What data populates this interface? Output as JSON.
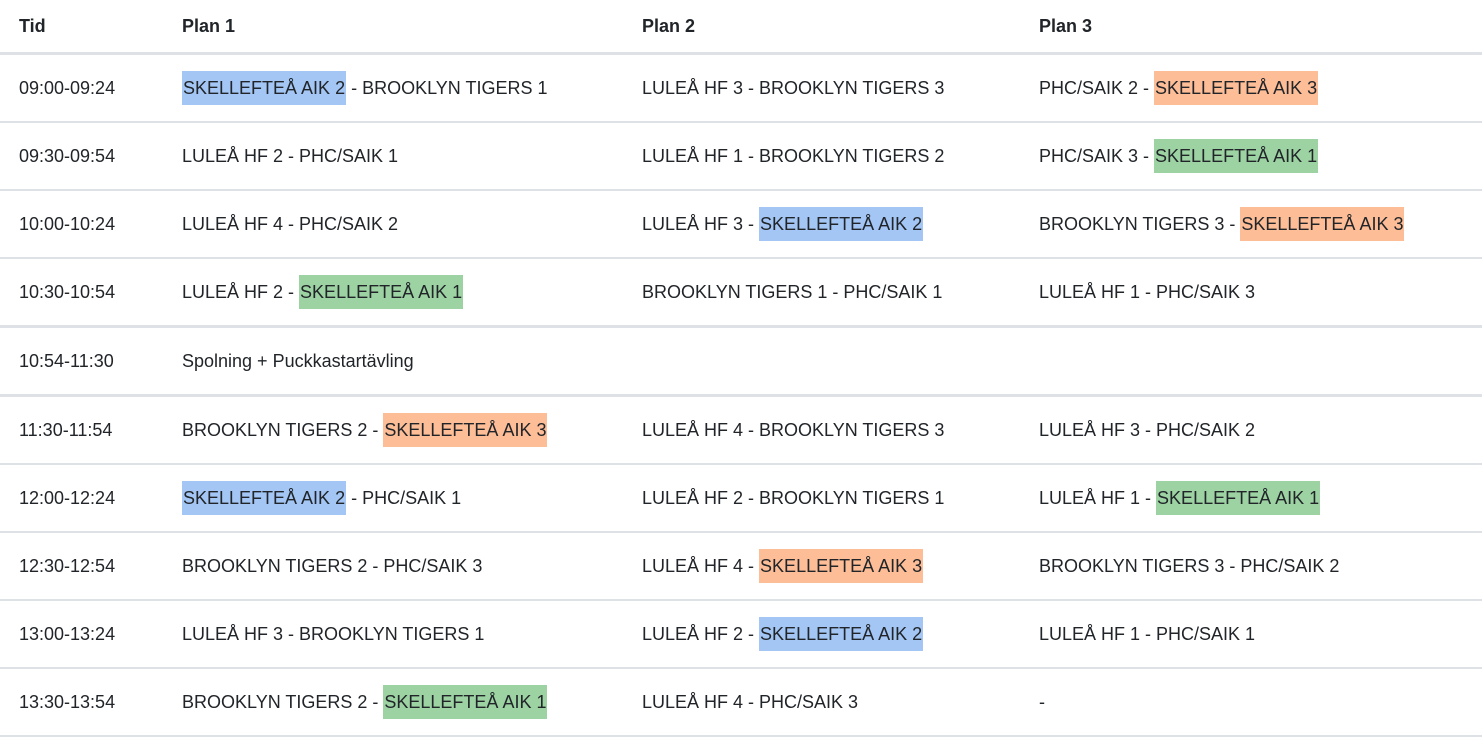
{
  "colors": {
    "blue": "#a3c6f5",
    "green": "#9dd3a3",
    "orange": "#fdbd97"
  },
  "headers": [
    "Tid",
    "Plan 1",
    "Plan 2",
    "Plan 3"
  ],
  "rows": [
    {
      "time": "09:00-09:24",
      "cells": [
        [
          {
            "t": "SKELLEFTEÅ AIK 2",
            "hl": "blue"
          },
          {
            "t": " - BROOKLYN TIGERS 1"
          }
        ],
        [
          {
            "t": "LULEÅ HF 3 - BROOKLYN TIGERS 3"
          }
        ],
        [
          {
            "t": "PHC/SAIK 2 - "
          },
          {
            "t": "SKELLEFTEÅ AIK 3",
            "hl": "orange"
          }
        ]
      ]
    },
    {
      "time": "09:30-09:54",
      "cells": [
        [
          {
            "t": "LULEÅ HF 2 - PHC/SAIK 1"
          }
        ],
        [
          {
            "t": "LULEÅ HF 1 - BROOKLYN TIGERS 2"
          }
        ],
        [
          {
            "t": "PHC/SAIK 3 - "
          },
          {
            "t": "SKELLEFTEÅ AIK 1",
            "hl": "green"
          }
        ]
      ]
    },
    {
      "time": "10:00-10:24",
      "cells": [
        [
          {
            "t": "LULEÅ HF 4 - PHC/SAIK 2"
          }
        ],
        [
          {
            "t": "LULEÅ HF 3 - "
          },
          {
            "t": "SKELLEFTEÅ AIK 2",
            "hl": "blue"
          }
        ],
        [
          {
            "t": "BROOKLYN TIGERS 3 - "
          },
          {
            "t": "SKELLEFTEÅ AIK 3",
            "hl": "orange"
          }
        ]
      ]
    },
    {
      "time": "10:30-10:54",
      "cells": [
        [
          {
            "t": "LULEÅ HF 2 - "
          },
          {
            "t": "SKELLEFTEÅ AIK 1",
            "hl": "green"
          }
        ],
        [
          {
            "t": "BROOKLYN TIGERS 1 - PHC/SAIK 1"
          }
        ],
        [
          {
            "t": "LULEÅ HF 1 - PHC/SAIK 3"
          }
        ]
      ]
    },
    {
      "time": "10:54-11:30",
      "cells": [
        [
          {
            "t": "Spolning + Puckkastartävling"
          }
        ],
        [],
        []
      ],
      "break": true
    },
    {
      "time": "11:30-11:54",
      "cells": [
        [
          {
            "t": "BROOKLYN TIGERS 2 - "
          },
          {
            "t": "SKELLEFTEÅ AIK 3",
            "hl": "orange"
          }
        ],
        [
          {
            "t": "LULEÅ HF 4 - BROOKLYN TIGERS 3"
          }
        ],
        [
          {
            "t": "LULEÅ HF 3 - PHC/SAIK 2"
          }
        ]
      ]
    },
    {
      "time": "12:00-12:24",
      "cells": [
        [
          {
            "t": "SKELLEFTEÅ AIK 2",
            "hl": "blue"
          },
          {
            "t": " - PHC/SAIK 1"
          }
        ],
        [
          {
            "t": "LULEÅ HF 2 - BROOKLYN TIGERS 1"
          }
        ],
        [
          {
            "t": "LULEÅ HF 1 - "
          },
          {
            "t": "SKELLEFTEÅ AIK 1",
            "hl": "green"
          }
        ]
      ]
    },
    {
      "time": "12:30-12:54",
      "cells": [
        [
          {
            "t": "BROOKLYN TIGERS 2 - PHC/SAIK 3"
          }
        ],
        [
          {
            "t": "LULEÅ HF 4 - "
          },
          {
            "t": "SKELLEFTEÅ AIK 3",
            "hl": "orange"
          }
        ],
        [
          {
            "t": "BROOKLYN TIGERS 3 - PHC/SAIK 2"
          }
        ]
      ]
    },
    {
      "time": "13:00-13:24",
      "cells": [
        [
          {
            "t": "LULEÅ HF 3 - BROOKLYN TIGERS 1"
          }
        ],
        [
          {
            "t": "LULEÅ HF 2 - "
          },
          {
            "t": "SKELLEFTEÅ AIK 2",
            "hl": "blue"
          }
        ],
        [
          {
            "t": "LULEÅ HF 1 - PHC/SAIK 1"
          }
        ]
      ]
    },
    {
      "time": "13:30-13:54",
      "cells": [
        [
          {
            "t": "BROOKLYN TIGERS 2 - "
          },
          {
            "t": "SKELLEFTEÅ AIK 1",
            "hl": "green"
          }
        ],
        [
          {
            "t": "LULEÅ HF 4 - PHC/SAIK 3"
          }
        ],
        [
          {
            "t": "-"
          }
        ]
      ]
    }
  ]
}
